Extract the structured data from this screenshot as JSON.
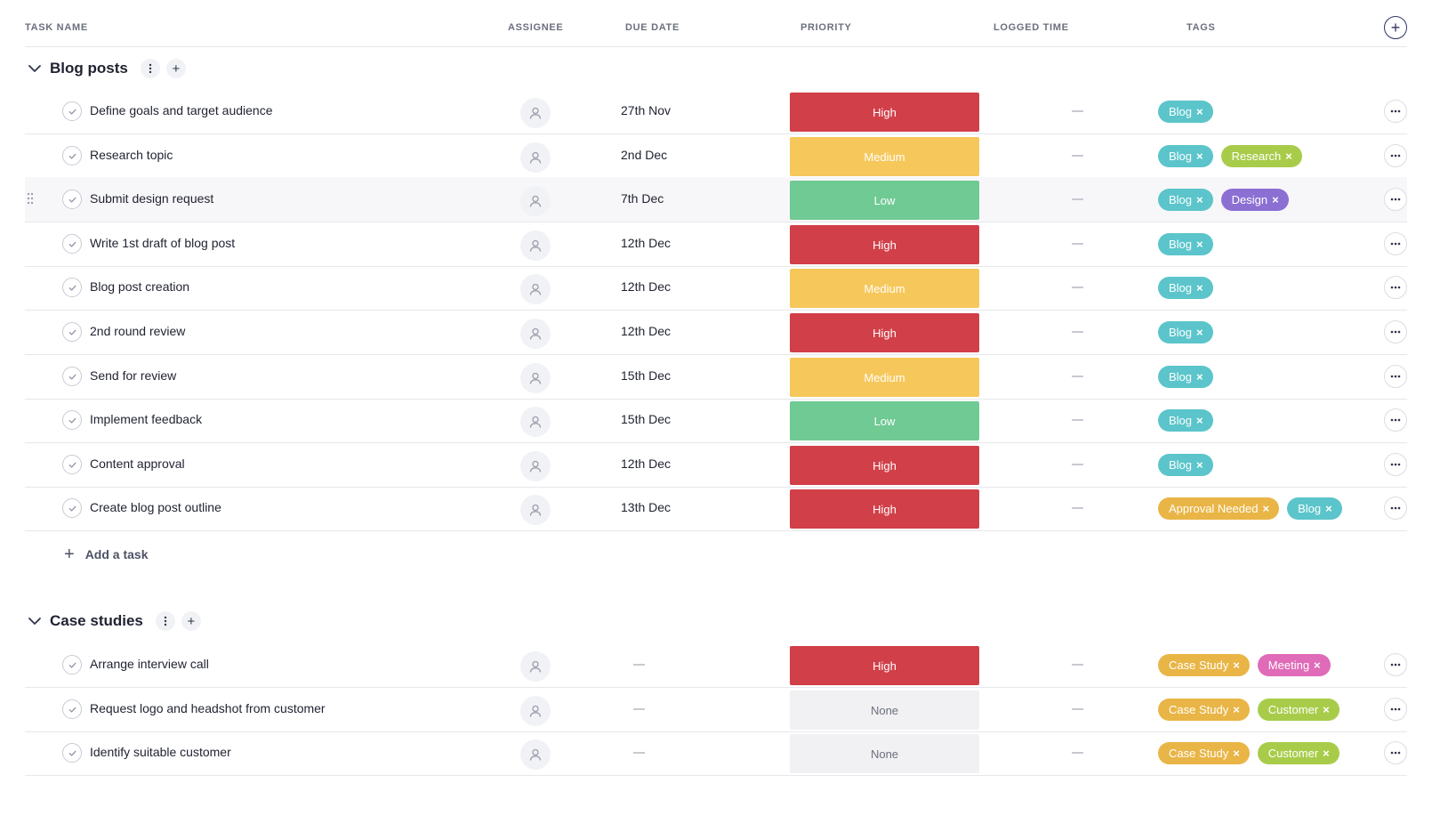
{
  "columns": {
    "task_name": "TASK NAME",
    "assignee": "ASSIGNEE",
    "due_date": "DUE DATE",
    "priority": "PRIORITY",
    "logged_time": "LOGGED TIME",
    "tags": "TAGS"
  },
  "colors": {
    "High": "#d13f48",
    "Medium": "#f6c75a",
    "Low": "#6fca93",
    "None": "#f1f1f3",
    "Blog": "#5bc5cb",
    "Research": "#a8cc4a",
    "Design": "#8b6fd3",
    "Approval Needed": "#e9b546",
    "Case Study": "#e9b546",
    "Meeting": "#e06bb8",
    "Customer": "#a8cc4a"
  },
  "groups": [
    {
      "title": "Blog posts",
      "add_task_label": "Add a task",
      "tasks": [
        {
          "name": "Define goals and target audience",
          "due": "27th Nov",
          "priority": "High",
          "tags": [
            "Blog"
          ]
        },
        {
          "name": "Research topic",
          "due": "2nd Dec",
          "priority": "Medium",
          "tags": [
            "Blog",
            "Research"
          ]
        },
        {
          "name": "Submit design request",
          "due": "7th Dec",
          "priority": "Low",
          "tags": [
            "Blog",
            "Design"
          ],
          "highlight": true
        },
        {
          "name": "Write 1st draft of blog post",
          "due": "12th Dec",
          "priority": "High",
          "tags": [
            "Blog"
          ]
        },
        {
          "name": "Blog post creation",
          "due": "12th Dec",
          "priority": "Medium",
          "tags": [
            "Blog"
          ]
        },
        {
          "name": "2nd round review",
          "due": "12th Dec",
          "priority": "High",
          "tags": [
            "Blog"
          ]
        },
        {
          "name": "Send for review",
          "due": "15th Dec",
          "priority": "Medium",
          "tags": [
            "Blog"
          ]
        },
        {
          "name": "Implement feedback",
          "due": "15th Dec",
          "priority": "Low",
          "tags": [
            "Blog"
          ]
        },
        {
          "name": "Content approval",
          "due": "12th Dec",
          "priority": "High",
          "tags": [
            "Blog"
          ]
        },
        {
          "name": "Create blog post outline",
          "due": "13th Dec",
          "priority": "High",
          "tags": [
            "Approval Needed",
            "Blog"
          ]
        }
      ]
    },
    {
      "title": "Case studies",
      "tasks": [
        {
          "name": "Arrange interview call",
          "due": "",
          "priority": "High",
          "tags": [
            "Case Study",
            "Meeting"
          ]
        },
        {
          "name": "Request logo and headshot from customer",
          "due": "",
          "priority": "None",
          "tags": [
            "Case Study",
            "Customer"
          ]
        },
        {
          "name": "Identify suitable customer",
          "due": "",
          "priority": "None",
          "tags": [
            "Case Study",
            "Customer"
          ]
        }
      ]
    }
  ]
}
